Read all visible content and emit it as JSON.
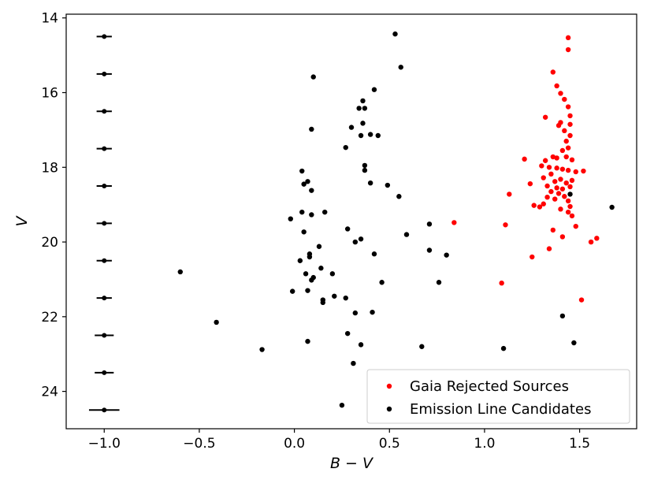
{
  "chart_data": {
    "type": "scatter",
    "xlabel": "B − V",
    "ylabel": "V",
    "xlim": [
      -1.2,
      1.8
    ],
    "ylim": [
      25.0,
      13.9
    ],
    "y_inverted": true,
    "xticks": [
      -1.0,
      -0.5,
      0.0,
      0.5,
      1.0,
      1.5
    ],
    "xtick_labels": [
      "−1.0",
      "−0.5",
      "0.0",
      "0.5",
      "1.0",
      "1.5"
    ],
    "yticks": [
      14,
      16,
      18,
      20,
      22,
      24
    ],
    "ytick_labels": [
      "14",
      "16",
      "18",
      "20",
      "22",
      "24"
    ],
    "grid": false,
    "legend_position": "bottom-right",
    "colors": {
      "gaia": "#ff0000",
      "emission": "#000000",
      "errorbar": "#000000"
    },
    "error_bars": {
      "x": -1.0,
      "points": [
        {
          "y": 14.5,
          "xerr": 0.04
        },
        {
          "y": 15.5,
          "xerr": 0.04
        },
        {
          "y": 16.5,
          "xerr": 0.04
        },
        {
          "y": 17.5,
          "xerr": 0.04
        },
        {
          "y": 18.5,
          "xerr": 0.04
        },
        {
          "y": 19.5,
          "xerr": 0.04
        },
        {
          "y": 20.5,
          "xerr": 0.04
        },
        {
          "y": 21.5,
          "xerr": 0.04
        },
        {
          "y": 22.5,
          "xerr": 0.05
        },
        {
          "y": 23.5,
          "xerr": 0.05
        },
        {
          "y": 24.5,
          "xerr": 0.08
        }
      ]
    },
    "series": [
      {
        "name": "Gaia Rejected Sources",
        "color": "#ff0000",
        "points": [
          [
            1.44,
            14.53
          ],
          [
            1.44,
            14.85
          ],
          [
            1.36,
            15.45
          ],
          [
            1.38,
            15.82
          ],
          [
            1.4,
            16.02
          ],
          [
            1.42,
            16.18
          ],
          [
            1.44,
            16.38
          ],
          [
            1.45,
            16.62
          ],
          [
            1.32,
            16.66
          ],
          [
            1.4,
            16.8
          ],
          [
            1.45,
            16.85
          ],
          [
            1.39,
            16.88
          ],
          [
            1.42,
            17.02
          ],
          [
            1.45,
            17.15
          ],
          [
            1.43,
            17.3
          ],
          [
            1.44,
            17.48
          ],
          [
            1.41,
            17.55
          ],
          [
            1.36,
            17.72
          ],
          [
            1.38,
            17.75
          ],
          [
            1.43,
            17.72
          ],
          [
            1.21,
            17.78
          ],
          [
            1.32,
            17.82
          ],
          [
            1.46,
            17.8
          ],
          [
            1.3,
            17.96
          ],
          [
            1.34,
            18.0
          ],
          [
            1.38,
            18.02
          ],
          [
            1.41,
            18.05
          ],
          [
            1.44,
            18.08
          ],
          [
            1.48,
            18.12
          ],
          [
            1.52,
            18.1
          ],
          [
            1.35,
            18.18
          ],
          [
            1.31,
            18.28
          ],
          [
            1.37,
            18.38
          ],
          [
            1.4,
            18.32
          ],
          [
            1.43,
            18.42
          ],
          [
            1.46,
            18.35
          ],
          [
            1.24,
            18.44
          ],
          [
            1.33,
            18.5
          ],
          [
            1.38,
            18.55
          ],
          [
            1.41,
            18.58
          ],
          [
            1.45,
            18.52
          ],
          [
            1.35,
            18.65
          ],
          [
            1.39,
            18.7
          ],
          [
            1.13,
            18.72
          ],
          [
            1.42,
            18.78
          ],
          [
            1.33,
            18.8
          ],
          [
            1.37,
            18.85
          ],
          [
            1.44,
            18.9
          ],
          [
            1.31,
            18.98
          ],
          [
            1.45,
            19.05
          ],
          [
            1.26,
            19.02
          ],
          [
            1.29,
            19.06
          ],
          [
            1.4,
            19.12
          ],
          [
            1.44,
            19.2
          ],
          [
            1.46,
            19.3
          ],
          [
            0.84,
            19.48
          ],
          [
            1.11,
            19.54
          ],
          [
            1.48,
            19.58
          ],
          [
            1.36,
            19.68
          ],
          [
            1.41,
            19.86
          ],
          [
            1.59,
            19.9
          ],
          [
            1.56,
            20.0
          ],
          [
            1.34,
            20.18
          ],
          [
            1.25,
            20.4
          ],
          [
            1.09,
            21.1
          ],
          [
            1.51,
            21.55
          ]
        ]
      },
      {
        "name": "Emission Line Candidates",
        "color": "#000000",
        "points": [
          [
            0.53,
            14.43
          ],
          [
            0.56,
            15.32
          ],
          [
            0.1,
            15.58
          ],
          [
            0.42,
            15.92
          ],
          [
            0.36,
            16.22
          ],
          [
            0.34,
            16.42
          ],
          [
            0.37,
            16.42
          ],
          [
            0.36,
            16.82
          ],
          [
            0.3,
            16.93
          ],
          [
            0.09,
            16.98
          ],
          [
            0.35,
            17.15
          ],
          [
            0.4,
            17.12
          ],
          [
            0.44,
            17.15
          ],
          [
            0.27,
            17.47
          ],
          [
            0.37,
            17.95
          ],
          [
            0.37,
            18.08
          ],
          [
            0.04,
            18.1
          ],
          [
            0.07,
            18.38
          ],
          [
            0.05,
            18.45
          ],
          [
            0.4,
            18.42
          ],
          [
            0.49,
            18.48
          ],
          [
            0.09,
            18.62
          ],
          [
            0.55,
            18.78
          ],
          [
            1.45,
            18.72
          ],
          [
            1.67,
            19.07
          ],
          [
            0.04,
            19.2
          ],
          [
            0.09,
            19.27
          ],
          [
            0.16,
            19.2
          ],
          [
            -0.02,
            19.38
          ],
          [
            0.71,
            19.52
          ],
          [
            0.28,
            19.65
          ],
          [
            0.05,
            19.73
          ],
          [
            0.59,
            19.8
          ],
          [
            0.35,
            19.92
          ],
          [
            0.32,
            20.0
          ],
          [
            0.13,
            20.12
          ],
          [
            0.71,
            20.22
          ],
          [
            0.08,
            20.32
          ],
          [
            0.08,
            20.4
          ],
          [
            0.42,
            20.32
          ],
          [
            0.8,
            20.35
          ],
          [
            0.03,
            20.5
          ],
          [
            0.14,
            20.7
          ],
          [
            0.06,
            20.85
          ],
          [
            0.2,
            20.85
          ],
          [
            -0.6,
            20.8
          ],
          [
            0.1,
            20.95
          ],
          [
            0.09,
            21.02
          ],
          [
            0.46,
            21.08
          ],
          [
            0.76,
            21.08
          ],
          [
            0.07,
            21.3
          ],
          [
            -0.01,
            21.32
          ],
          [
            0.21,
            21.45
          ],
          [
            0.27,
            21.5
          ],
          [
            0.15,
            21.55
          ],
          [
            0.15,
            21.62
          ],
          [
            0.32,
            21.9
          ],
          [
            0.41,
            21.88
          ],
          [
            1.41,
            21.98
          ],
          [
            -0.41,
            22.15
          ],
          [
            0.28,
            22.45
          ],
          [
            0.07,
            22.66
          ],
          [
            0.35,
            22.75
          ],
          [
            1.47,
            22.7
          ],
          [
            0.67,
            22.8
          ],
          [
            -0.17,
            22.88
          ],
          [
            1.1,
            22.85
          ],
          [
            0.31,
            23.25
          ],
          [
            0.25,
            24.37
          ]
        ]
      }
    ]
  }
}
